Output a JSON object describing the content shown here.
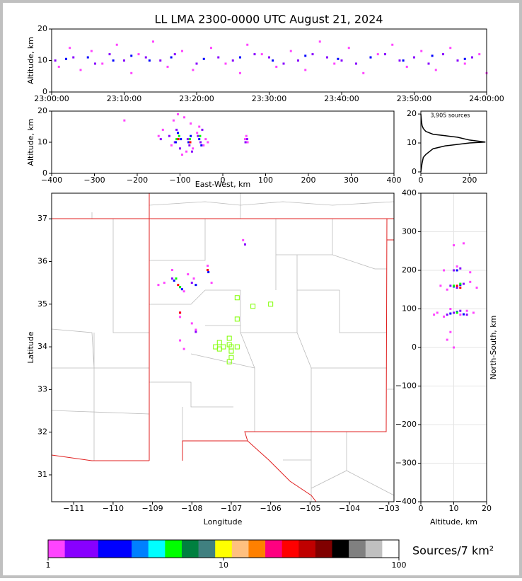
{
  "chart_data": [
    {
      "type": "scatter",
      "title": "LL LMA 2300-0000 UTC August 21, 2024",
      "ylabel": "Altitude, km",
      "xlim": [
        0,
        60
      ],
      "xticks": [
        {
          "value": 0,
          "label": "23:00:00"
        },
        {
          "value": 10,
          "label": "23:10:00"
        },
        {
          "value": 20,
          "label": "23:20:00"
        },
        {
          "value": 30,
          "label": "23:30:00"
        },
        {
          "value": 40,
          "label": "23:40:00"
        },
        {
          "value": 50,
          "label": "23:50:00"
        },
        {
          "value": 60,
          "label": "24:00:00"
        }
      ],
      "ylim": [
        0,
        20
      ],
      "yticks": [
        0,
        10,
        20
      ],
      "series": [
        {
          "color": "#ff44ff",
          "x": [
            1,
            2.5,
            4,
            5.5,
            7,
            9,
            11,
            12,
            14,
            16,
            18,
            19.5,
            22,
            24,
            26,
            27,
            29,
            31,
            33,
            35,
            37,
            39,
            41,
            43,
            45,
            47,
            49,
            51,
            53,
            55,
            57,
            59,
            60
          ],
          "values": [
            8,
            14,
            7,
            13,
            9,
            15,
            6,
            12,
            16,
            8,
            13,
            7,
            14,
            9,
            6,
            15,
            12,
            8,
            13,
            7,
            16,
            9,
            14,
            6,
            12,
            15,
            8,
            13,
            7,
            14,
            9,
            12,
            6
          ]
        },
        {
          "color": "#8800ff",
          "x": [
            0.5,
            3,
            6,
            8,
            10,
            13,
            15,
            17,
            20,
            23,
            25,
            28,
            30,
            32,
            34,
            36,
            38,
            40,
            42,
            44,
            46,
            48,
            50,
            52,
            54,
            56,
            58
          ],
          "values": [
            10,
            11,
            9,
            12,
            10,
            11,
            10,
            12,
            9,
            11,
            10,
            12,
            11,
            9,
            10,
            12,
            11,
            10,
            9,
            11,
            12,
            10,
            11,
            9,
            12,
            10,
            11
          ]
        },
        {
          "color": "#0000ff",
          "x": [
            2,
            5,
            8.5,
            11,
            13.5,
            16.5,
            21,
            26,
            30.5,
            35,
            39.5,
            44,
            48.5,
            52.5,
            57
          ],
          "values": [
            10.5,
            11,
            10,
            11.5,
            10,
            11,
            10.5,
            11,
            10,
            11.5,
            10.5,
            11,
            10,
            11.5,
            10.5
          ]
        }
      ]
    },
    {
      "type": "scatter",
      "xlabel": "East-West, km",
      "ylabel": "Altitude, km",
      "xlim": [
        -400,
        400
      ],
      "xticks": [
        {
          "value": -400,
          "label": "−400"
        },
        {
          "value": -300,
          "label": "−300"
        },
        {
          "value": -200,
          "label": "−200"
        },
        {
          "value": -100,
          "label": "−100"
        },
        0,
        100,
        200,
        300,
        400
      ],
      "ylim": [
        0,
        20
      ],
      "yticks": [
        0,
        10,
        20
      ],
      "series": [
        {
          "color": "#ff44ff",
          "x": [
            -150,
            -140,
            -120,
            -115,
            -105,
            -95,
            -90,
            -85,
            -75,
            -70,
            -60,
            -55,
            -45,
            -40,
            -35,
            52,
            55,
            58,
            -230
          ],
          "values": [
            12,
            14,
            9,
            17,
            19,
            6,
            18,
            7,
            16,
            8,
            13,
            15,
            9,
            11,
            10,
            11,
            12,
            10,
            17
          ]
        },
        {
          "color": "#8800ff",
          "x": [
            -145,
            -125,
            -112,
            -108,
            -100,
            -82,
            -78,
            -72,
            -58,
            -52,
            -48,
            53,
            57
          ],
          "values": [
            11,
            12,
            10,
            14,
            8,
            11,
            9,
            7,
            12,
            10,
            14,
            10,
            11
          ]
        },
        {
          "color": "#0000ff",
          "x": [
            -110,
            -105,
            -98,
            -80,
            -75,
            -55,
            -50
          ],
          "values": [
            10,
            13,
            11,
            10,
            12,
            11,
            9
          ]
        },
        {
          "color": "#00ff00",
          "x": [
            -108,
            -102,
            -77,
            -53
          ],
          "values": [
            11,
            12,
            11,
            12
          ]
        },
        {
          "color": "#ff0000",
          "x": [
            -104,
            -76
          ],
          "values": [
            11,
            10
          ]
        }
      ]
    },
    {
      "type": "line",
      "annotation": "3,905 sources",
      "xlim": [
        0,
        270
      ],
      "xticks": [
        0,
        200
      ],
      "ylim": [
        -0.5,
        21
      ],
      "yticks": [
        0,
        10,
        20
      ],
      "series": [
        {
          "color": "#000000",
          "x": [
            0,
            5,
            10,
            20,
            50,
            100,
            200,
            265,
            200,
            150,
            100,
            50,
            20,
            10,
            5,
            2,
            0
          ],
          "values": [
            0,
            3,
            5,
            6,
            8,
            9,
            10,
            10.3,
            11,
            12,
            12.5,
            13,
            14,
            15,
            16,
            18,
            20
          ]
        }
      ]
    },
    {
      "type": "scatter",
      "xlabel": "Longitude",
      "ylabel": "Latitude",
      "xlim": [
        -111.56,
        -102.87
      ],
      "xticks": [
        {
          "value": -111,
          "label": "−111"
        },
        {
          "value": -110,
          "label": "−110"
        },
        {
          "value": -109,
          "label": "−109"
        },
        {
          "value": -108,
          "label": "−108"
        },
        {
          "value": -107,
          "label": "−107"
        },
        {
          "value": -106,
          "label": "−106"
        },
        {
          "value": -105,
          "label": "−105"
        },
        {
          "value": -104,
          "label": "−104"
        },
        {
          "value": -103,
          "label": "−103"
        }
      ],
      "ylim": [
        30.37,
        37.6
      ],
      "yticks": [
        31,
        32,
        33,
        34,
        35,
        36,
        37
      ],
      "series": [
        {
          "color": "#ff44ff",
          "x": [
            -108.7,
            -108.5,
            -108.2,
            -107.95,
            -107.6,
            -108.3,
            -106.7,
            -107.9,
            -108.2,
            -108.3,
            -107.5,
            -108.85,
            -108.1,
            -108.0
          ],
          "values": [
            35.5,
            35.8,
            35.3,
            35.6,
            35.9,
            34.7,
            36.5,
            34.4,
            33.95,
            34.15,
            35.5,
            35.45,
            35.7,
            34.55
          ]
        },
        {
          "color": "#8800ff",
          "x": [
            -108.5,
            -108.3,
            -108.0,
            -107.6,
            -108.3,
            -106.65,
            -107.9
          ],
          "values": [
            35.6,
            35.4,
            35.5,
            35.8,
            34.8,
            36.4,
            34.35
          ]
        },
        {
          "color": "#0000ff",
          "x": [
            -108.45,
            -108.25,
            -107.9,
            -107.58
          ],
          "values": [
            35.55,
            35.35,
            35.45,
            35.75
          ]
        },
        {
          "color": "#00ff00",
          "x": [
            -108.4,
            -108.3
          ],
          "values": [
            35.6,
            35.4
          ]
        },
        {
          "color": "#ff0000",
          "x": [
            -108.35,
            -107.6,
            -108.3
          ],
          "values": [
            35.45,
            35.8,
            34.8
          ]
        },
        {
          "color": "#7fff00",
          "marker": "square-open",
          "x": [
            -106.85,
            -106.45,
            -106.0,
            -106.85,
            -107.05,
            -107.3,
            -107.05,
            -107.4,
            -107.2,
            -107.0,
            -106.85,
            -107.0,
            -107.0,
            -107.05,
            -107.3
          ],
          "values": [
            35.15,
            34.95,
            35.0,
            34.65,
            34.2,
            34.1,
            34.05,
            34.0,
            34.0,
            34.0,
            34.0,
            33.9,
            33.75,
            33.65,
            33.95
          ]
        }
      ]
    },
    {
      "type": "scatter",
      "xlabel": "Altitude, km",
      "ylabel": "North-South, km",
      "grid": true,
      "xlim": [
        0,
        20
      ],
      "xticks": [
        0,
        10,
        20
      ],
      "ylim": [
        -400,
        400
      ],
      "yticks": [
        {
          "value": -400,
          "label": "−400"
        },
        {
          "value": -300,
          "label": "−300"
        },
        {
          "value": -200,
          "label": "−200"
        },
        {
          "value": -100,
          "label": "−100"
        },
        0,
        100,
        200,
        300,
        400
      ],
      "series": [
        {
          "color": "#ff44ff",
          "x": [
            5,
            7,
            9,
            12,
            14,
            16,
            6,
            8,
            15,
            17,
            4,
            10,
            13,
            8,
            9,
            10,
            7,
            11,
            15
          ],
          "values": [
            90,
            80,
            100,
            85,
            95,
            90,
            160,
            150,
            170,
            155,
            85,
            265,
            270,
            20,
            40,
            0,
            200,
            210,
            195
          ]
        },
        {
          "color": "#8800ff",
          "x": [
            8,
            10,
            12,
            14,
            9,
            11,
            13,
            10,
            12
          ],
          "values": [
            85,
            90,
            95,
            85,
            160,
            155,
            165,
            200,
            205
          ]
        },
        {
          "color": "#0000ff",
          "x": [
            9,
            11,
            13,
            10,
            12,
            11
          ],
          "values": [
            88,
            92,
            86,
            158,
            162,
            200
          ]
        },
        {
          "color": "#00ff00",
          "x": [
            10,
            11,
            12
          ],
          "values": [
            160,
            90,
            165
          ]
        },
        {
          "color": "#ff0000",
          "x": [
            11,
            12
          ],
          "values": [
            160,
            155
          ]
        }
      ]
    },
    {
      "type": "colorbar",
      "label": "Sources/7 km²",
      "log": true,
      "xlim": [
        1,
        100
      ],
      "xticks": [
        1,
        10,
        100
      ],
      "colors": [
        "#ff44ff",
        "#8800ff",
        "#8800ff",
        "#0000ff",
        "#0000ff",
        "#0080ff",
        "#00ffff",
        "#00ff00",
        "#008040",
        "#408080",
        "#ffff00",
        "#ffc080",
        "#ff8000",
        "#ff0080",
        "#ff0000",
        "#c00000",
        "#800000",
        "#000000",
        "#808080",
        "#c0c0c0",
        "#ffffff"
      ]
    }
  ]
}
